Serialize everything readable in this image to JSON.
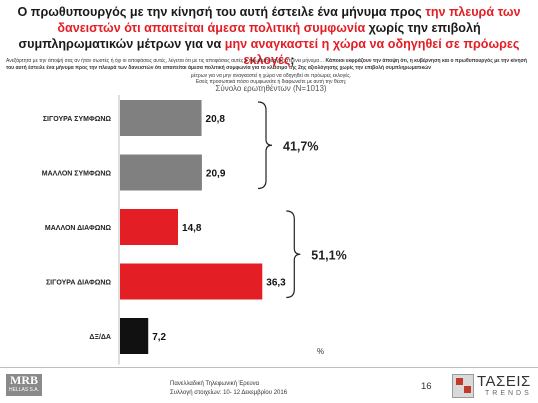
{
  "header": {
    "title_part1": "Ο πρωθυπουργός με την κίνησή του αυτή έστειλε ένα μήνυμα προς ",
    "title_red1": "την πλευρά των δανειστών ότι απαιτείται άμεσα πολιτική συμφωνία",
    "title_part2": " χωρίς την επιβολή συμπληρωματικών μέτρων για να ",
    "title_red2": "μην αναγκαστεί η χώρα να οδηγηθεί σε πρόωρες εκλογές",
    "title_part3": ";",
    "fine_print_1": "Ανεξάρτητα με την άποψή σας αν ήταν σωστές ή όχι οι αποφάσεις αυτές, λέγεται ότι με τις αποφάσεις αυτές ο πρωθυπουργός στέλνει μήνυμα…",
    "fine_print_1b": "Κάποιοι εκφράζουν την άποψη ότι, η κυβέρνηση και ο πρωθυπουργός με την κίνησή του αυτή έστειλε ένα μήνυμα προς την πλευρά των δανειστών ότι απαιτείται άμεσα πολιτική συμφωνία για το κλείσιμο της 2ης αξιολόγησης χωρίς την επιβολή συμπληρωματικών",
    "fine_print_2": "μέτρων για να μην αναγκαστεί η χώρα να οδηγηθεί σε πρόωρες εκλογές.",
    "fine_print_3": "Εσείς προσωπικά πόσο συμφωνείτε ή διαφωνείτε με αυτή την θέση;",
    "base": "Σύνολο ερωτηθέντων (N=1013)"
  },
  "chart_data": {
    "type": "bar",
    "orientation": "horizontal",
    "unit_label": "%",
    "categories": [
      "ΣΙΓΟΥΡΑ ΣΥΜΦΩΝΩ",
      "ΜΑΛΛΟΝ ΣΥΜΦΩΝΩ",
      "ΜΑΛΛΟΝ ΔΙΑΦΩΝΩ",
      "ΣΙΓΟΥΡΑ ΔΙΑΦΩΝΩ",
      "ΔΞ/ΔΑ"
    ],
    "values": [
      20.8,
      20.9,
      14.8,
      36.3,
      7.2
    ],
    "value_labels": [
      "20,8",
      "20,9",
      "14,8",
      "36,3",
      "7,2"
    ],
    "colors": [
      "#808080",
      "#808080",
      "#e31e24",
      "#e31e24",
      "#111111"
    ],
    "groups": [
      {
        "label": "41,7%",
        "from": 0,
        "to": 1
      },
      {
        "label": "51,1%",
        "from": 2,
        "to": 3
      }
    ],
    "xlim": [
      0,
      50
    ]
  },
  "footer": {
    "line1": "Πανελλαδική Τηλεφωνική Έρευνα",
    "line2": "Συλλογή στοιχείων: 10- 12 Δεκεμβρίου 2016",
    "page": "16",
    "logo_left_main": "MRB",
    "logo_left_sub": "HELLAS S.A.",
    "logo_right_main": "ΤΑΣΕΙΣ",
    "logo_right_sub": "TRENDS"
  }
}
